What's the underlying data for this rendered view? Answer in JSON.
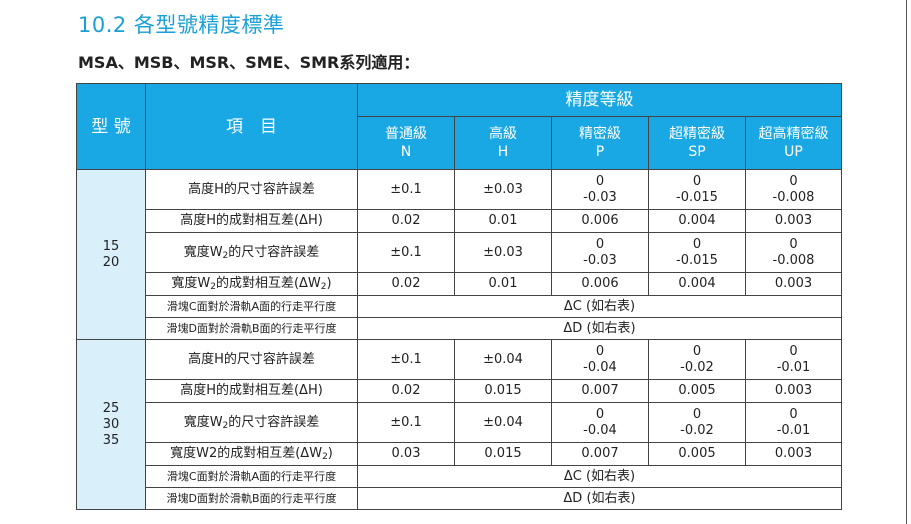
{
  "title": "10.2 各型號精度標準",
  "subtitle": "MSA、MSB、MSR、SME、SMR系列適用：",
  "headers": {
    "model": "型 號",
    "item": "項　目",
    "grade_group": "精度等級",
    "grades": [
      {
        "name": "普通級",
        "code": "N"
      },
      {
        "name": "高級",
        "code": "H"
      },
      {
        "name": "精密級",
        "code": "P"
      },
      {
        "name": "超精密級",
        "code": "SP"
      },
      {
        "name": "超高精密級",
        "code": "UP"
      }
    ]
  },
  "groups": [
    {
      "models": [
        "15",
        "20"
      ],
      "rows": {
        "h_tol": {
          "label": "高度H的尺寸容許誤差",
          "N": "±0.1",
          "H": "±0.03",
          "P": [
            "0",
            "-0.03"
          ],
          "SP": [
            "0",
            "-0.015"
          ],
          "UP": [
            "0",
            "-0.008"
          ]
        },
        "h_pair": {
          "label": "高度H的成對相互差(ΔH)",
          "N": "0.02",
          "H": "0.01",
          "P": "0.006",
          "SP": "0.004",
          "UP": "0.003"
        },
        "w_tol": {
          "label_pre": "寬度W",
          "label_sub": "2",
          "label_post": "的尺寸容許誤差",
          "N": "±0.1",
          "H": "±0.03",
          "P": [
            "0",
            "-0.03"
          ],
          "SP": [
            "0",
            "-0.015"
          ],
          "UP": [
            "0",
            "-0.008"
          ]
        },
        "w_pair": {
          "label_pre": "寬度W",
          "label_sub": "2",
          "label_post": "的成對相互差(ΔW",
          "label_sub2": "2",
          "label_end": ")",
          "N": "0.02",
          "H": "0.01",
          "P": "0.006",
          "SP": "0.004",
          "UP": "0.003"
        },
        "c_par": {
          "label": "滑塊C面對於滑軌A面的行走平行度",
          "value": "ΔC (如右表)"
        },
        "d_par": {
          "label": "滑塊D面對於滑軌B面的行走平行度",
          "value": "ΔD (如右表)"
        }
      }
    },
    {
      "models": [
        "25",
        "30",
        "35"
      ],
      "rows": {
        "h_tol": {
          "label": "高度H的尺寸容許誤差",
          "N": "±0.1",
          "H": "±0.04",
          "P": [
            "0",
            "-0.04"
          ],
          "SP": [
            "0",
            "-0.02"
          ],
          "UP": [
            "0",
            "-0.01"
          ]
        },
        "h_pair": {
          "label": "高度H的成對相互差(ΔH)",
          "N": "0.02",
          "H": "0.015",
          "P": "0.007",
          "SP": "0.005",
          "UP": "0.003"
        },
        "w_tol": {
          "label_pre": "寬度W",
          "label_sub": "2",
          "label_post": "的尺寸容許誤差",
          "N": "±0.1",
          "H": "±0.04",
          "P": [
            "0",
            "-0.04"
          ],
          "SP": [
            "0",
            "-0.02"
          ],
          "UP": [
            "0",
            "-0.01"
          ]
        },
        "w_pair": {
          "label_pre": "寬度W2的成對相互差(ΔW",
          "label_sub": "2",
          "label_post": ")",
          "N": "0.03",
          "H": "0.015",
          "P": "0.007",
          "SP": "0.005",
          "UP": "0.003"
        },
        "c_par": {
          "label": "滑塊C面對於滑軌A面的行走平行度",
          "value": "ΔC (如右表)"
        },
        "d_par": {
          "label": "滑塊D面對於滑軌B面的行走平行度",
          "value": "ΔD (如右表)"
        }
      }
    }
  ]
}
